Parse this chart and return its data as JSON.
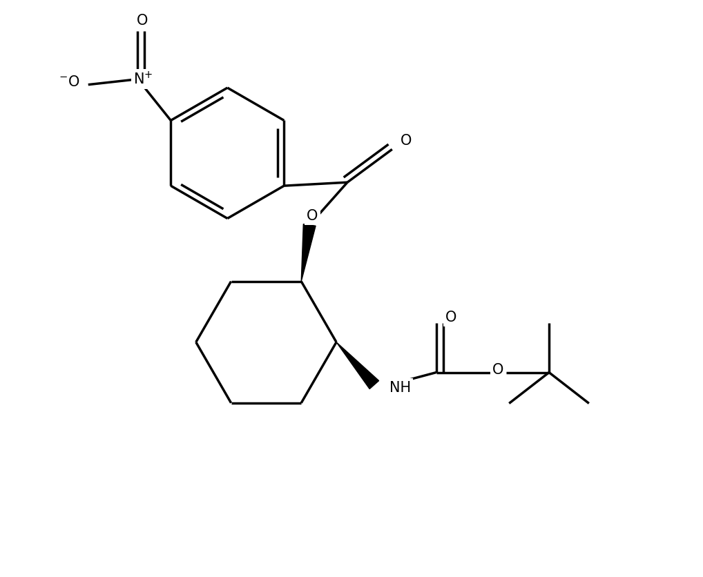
{
  "background_color": "#ffffff",
  "line_color": "#000000",
  "lw": 2.5,
  "fig_width": 10.18,
  "fig_height": 8.36,
  "dpi": 100,
  "xlim": [
    0,
    10.18
  ],
  "ylim": [
    0,
    8.36
  ],
  "font_size": 15
}
